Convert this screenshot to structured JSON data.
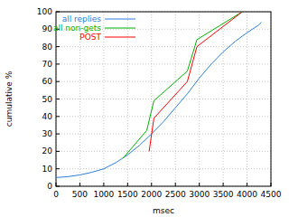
{
  "chart_data": {
    "type": "line",
    "x_label": "msec",
    "y_label": "cumulative %",
    "xlim": [
      0,
      4500
    ],
    "ylim": [
      0,
      100
    ],
    "xticks": [
      0,
      500,
      1000,
      1500,
      2000,
      2500,
      3000,
      3500,
      4000,
      4500
    ],
    "yticks": [
      0,
      10,
      20,
      30,
      40,
      50,
      60,
      70,
      80,
      90,
      100
    ],
    "grid": true,
    "legend": "upper left",
    "series": [
      {
        "name": "all replies",
        "color": "#2a7fd8",
        "x": [
          0,
          250,
          500,
          750,
          1000,
          1250,
          1500,
          1750,
          2000,
          2250,
          2500,
          2750,
          3000,
          3250,
          3500,
          3750,
          4000,
          4250,
          4300
        ],
        "values": [
          5,
          5.5,
          6.5,
          8,
          10,
          13.5,
          18,
          23.5,
          30,
          37,
          45,
          53,
          62,
          70,
          77,
          83,
          88,
          92.5,
          94
        ]
      },
      {
        "name": "all non-gets",
        "color": "#00b000",
        "x": [
          1400,
          1900,
          2050,
          2750,
          2950,
          3900
        ],
        "values": [
          16,
          32,
          49,
          66,
          84,
          100
        ]
      },
      {
        "name": "POST",
        "color": "#ff0000",
        "x": [
          1950,
          2050,
          2750,
          2950,
          3900
        ],
        "values": [
          20,
          39,
          60,
          80,
          100
        ]
      }
    ]
  }
}
